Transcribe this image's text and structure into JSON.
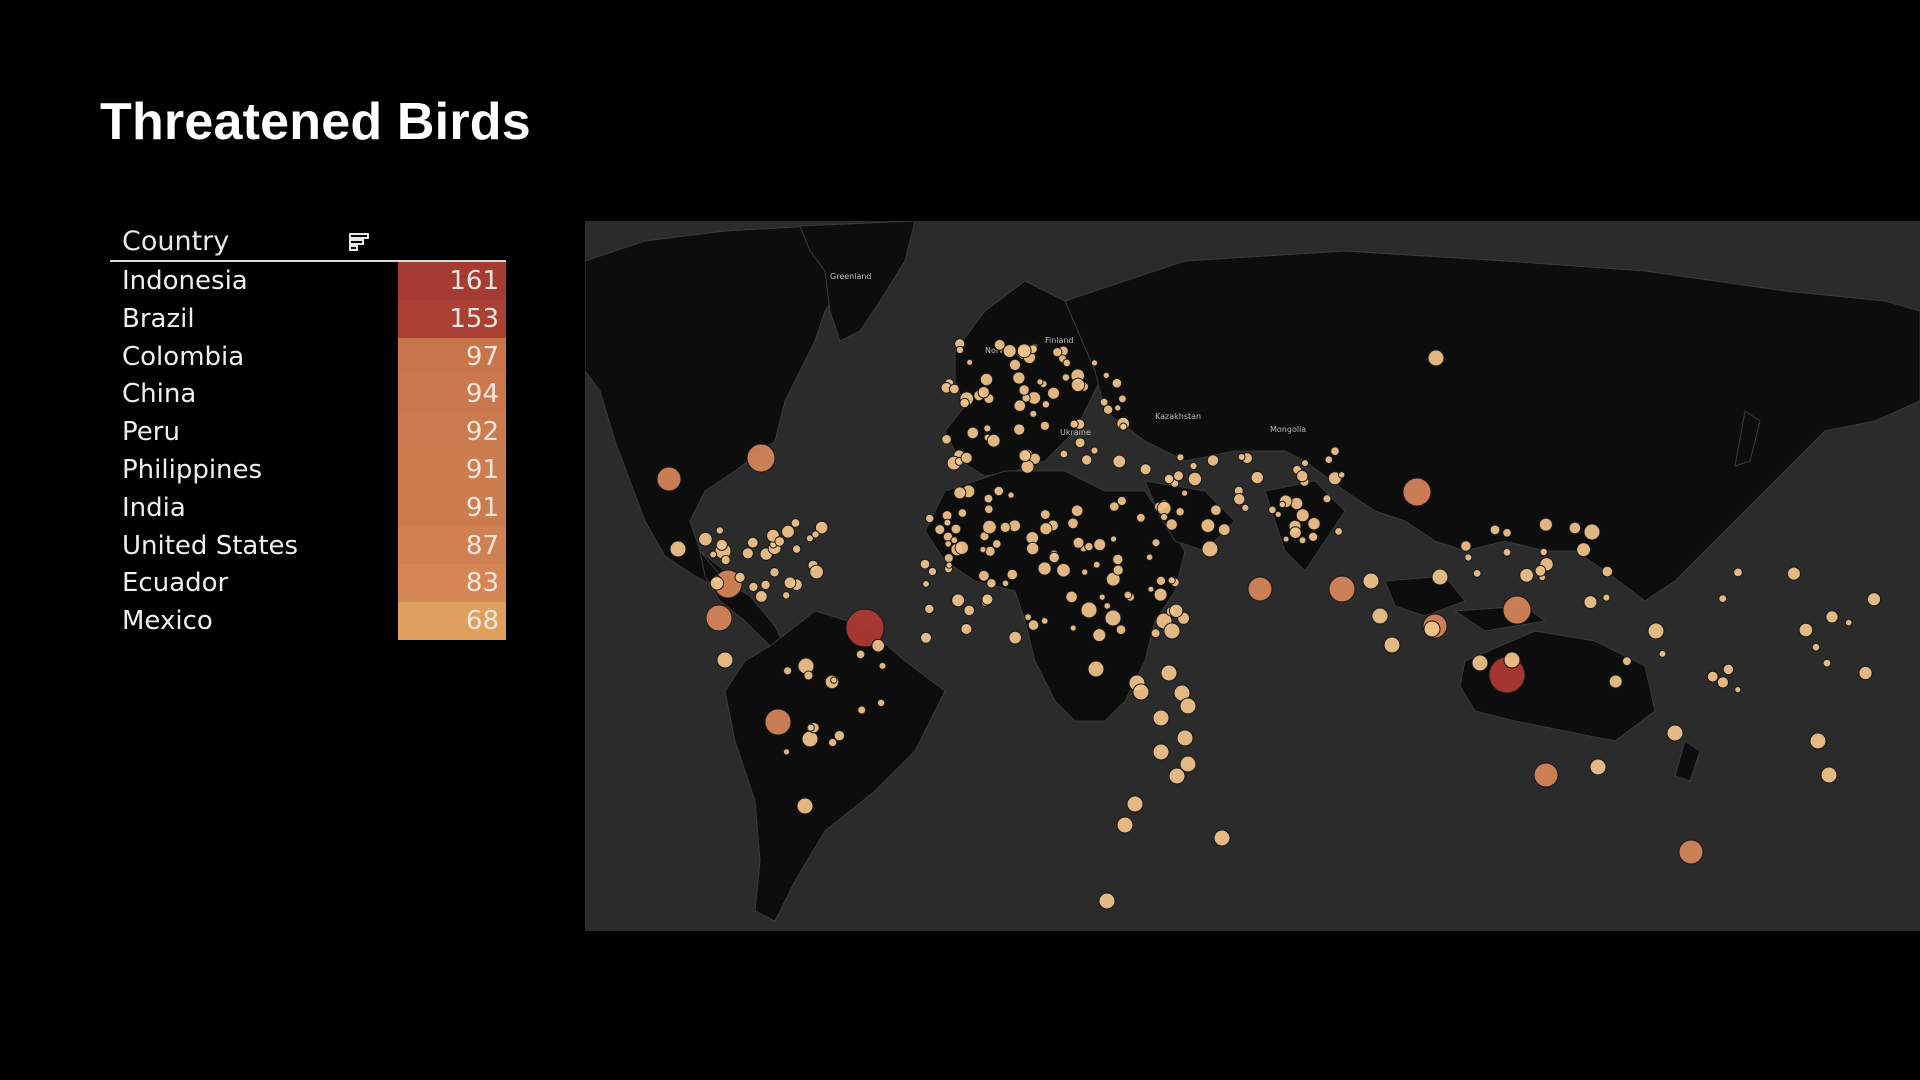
{
  "title": "Threatened Birds",
  "table": {
    "column_header": "Country",
    "sort_icon": "sort-descending-icon",
    "rows": [
      {
        "country": "Indonesia",
        "value": "161",
        "color": "#a63b34"
      },
      {
        "country": "Brazil",
        "value": "153",
        "color": "#ab4035"
      },
      {
        "country": "Colombia",
        "value": "97",
        "color": "#c9754c"
      },
      {
        "country": "China",
        "value": "94",
        "color": "#cb784e"
      },
      {
        "country": "Peru",
        "value": "92",
        "color": "#cc7a4f"
      },
      {
        "country": "Philippines",
        "value": "91",
        "color": "#cd7c50"
      },
      {
        "country": "India",
        "value": "91",
        "color": "#cd7c50"
      },
      {
        "country": "United States",
        "value": "87",
        "color": "#d08052"
      },
      {
        "country": "Ecuador",
        "value": "83",
        "color": "#d48654"
      },
      {
        "country": "Mexico",
        "value": "68",
        "color": "#e0a05d"
      }
    ]
  },
  "map": {
    "labels": [
      "Greenland",
      "Finland",
      "Norway",
      "Kazakhstan",
      "Mongolia",
      "Ukraine"
    ],
    "colors": {
      "background": "#2b2b2b",
      "land": "#0d0d0d",
      "border": "#3a3a3a",
      "high": "#b03a33",
      "mid": "#d9875a",
      "low": "#f3c48b"
    }
  }
}
